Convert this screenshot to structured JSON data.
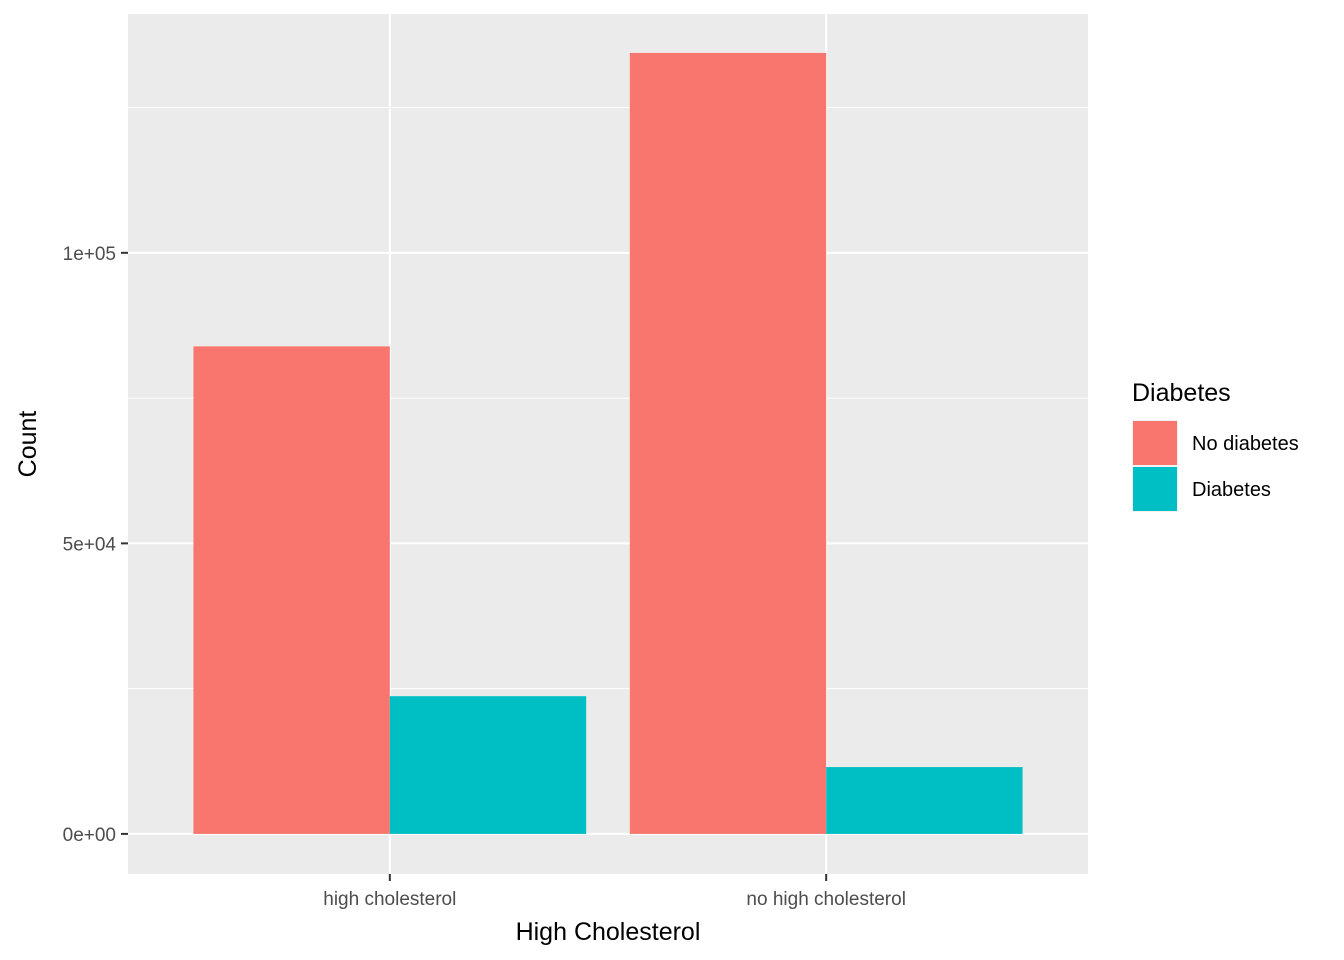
{
  "chart_data": {
    "type": "bar",
    "categories": [
      "high cholesterol",
      "no high cholesterol"
    ],
    "series": [
      {
        "name": "No diabetes",
        "values": [
          83900,
          134400
        ],
        "color": "#F8766D"
      },
      {
        "name": "Diabetes",
        "values": [
          23700,
          11500
        ],
        "color": "#00BFC4"
      }
    ],
    "xlabel": "High Cholesterol",
    "ylabel": "Count",
    "yticks": [
      0,
      50000,
      100000
    ],
    "ytick_labels": [
      "0e+00",
      "5e+04",
      "1e+05"
    ],
    "ylim": [
      -6900,
      141100
    ],
    "legend": {
      "title": "Diabetes",
      "position": "right"
    },
    "grid": true,
    "panel_color": "#EBEBEB"
  }
}
